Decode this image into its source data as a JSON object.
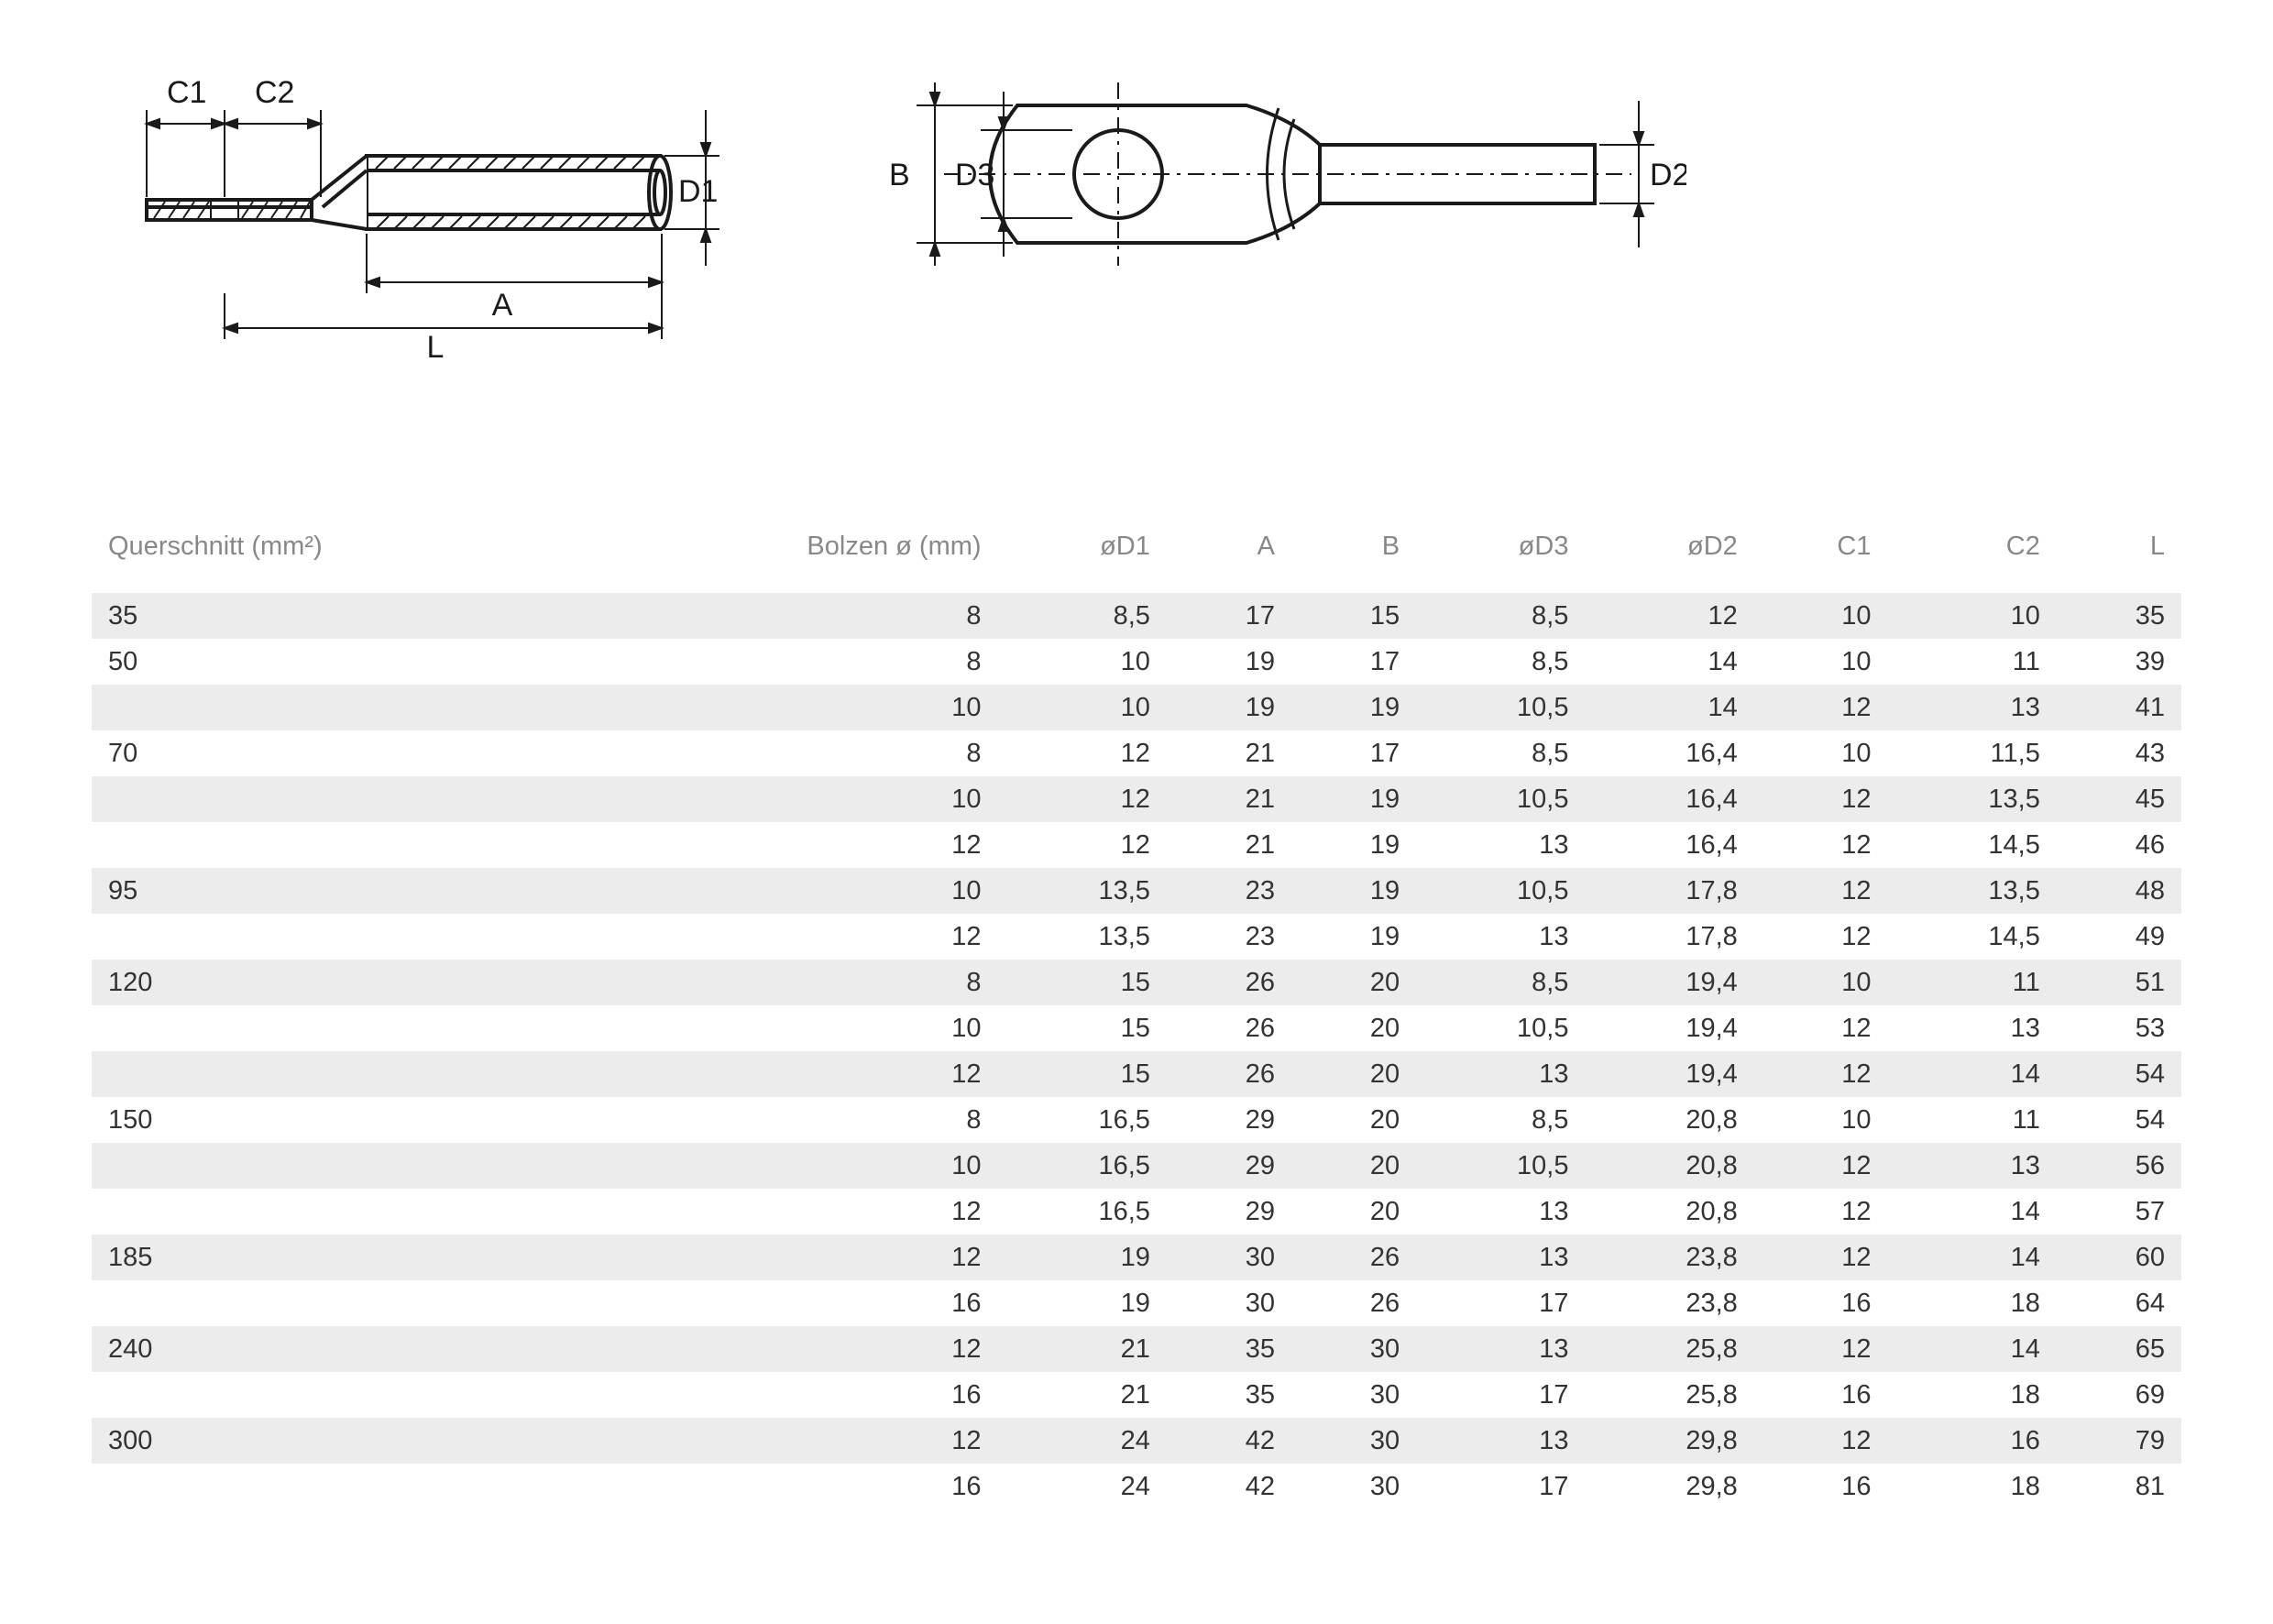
{
  "diagram": {
    "labels": {
      "C1": "C1",
      "C2": "C2",
      "D1": "D1",
      "A": "A",
      "L": "L",
      "B": "B",
      "D3": "D3",
      "D2": "D2"
    },
    "stroke": "#1a1a1a",
    "label_fontsize": 34,
    "label_color": "#1a1a1a"
  },
  "table": {
    "header_color": "#888888",
    "body_color": "#333333",
    "shade_color": "#ececec",
    "fontsize": 29,
    "columns": [
      "Querschnitt (mm²)",
      "Bolzen ø (mm)",
      "øD1",
      "A",
      "B",
      "øD3",
      "øD2",
      "C1",
      "C2",
      "L"
    ],
    "rows": [
      {
        "shade": true,
        "cells": [
          "35",
          "8",
          "8,5",
          "17",
          "15",
          "8,5",
          "12",
          "10",
          "10",
          "35"
        ]
      },
      {
        "shade": false,
        "cells": [
          "50",
          "8",
          "10",
          "19",
          "17",
          "8,5",
          "14",
          "10",
          "11",
          "39"
        ]
      },
      {
        "shade": true,
        "cells": [
          "",
          "10",
          "10",
          "19",
          "19",
          "10,5",
          "14",
          "12",
          "13",
          "41"
        ]
      },
      {
        "shade": false,
        "cells": [
          "70",
          "8",
          "12",
          "21",
          "17",
          "8,5",
          "16,4",
          "10",
          "11,5",
          "43"
        ]
      },
      {
        "shade": true,
        "cells": [
          "",
          "10",
          "12",
          "21",
          "19",
          "10,5",
          "16,4",
          "12",
          "13,5",
          "45"
        ]
      },
      {
        "shade": false,
        "cells": [
          "",
          "12",
          "12",
          "21",
          "19",
          "13",
          "16,4",
          "12",
          "14,5",
          "46"
        ]
      },
      {
        "shade": true,
        "cells": [
          "95",
          "10",
          "13,5",
          "23",
          "19",
          "10,5",
          "17,8",
          "12",
          "13,5",
          "48"
        ]
      },
      {
        "shade": false,
        "cells": [
          "",
          "12",
          "13,5",
          "23",
          "19",
          "13",
          "17,8",
          "12",
          "14,5",
          "49"
        ]
      },
      {
        "shade": true,
        "cells": [
          "120",
          "8",
          "15",
          "26",
          "20",
          "8,5",
          "19,4",
          "10",
          "11",
          "51"
        ]
      },
      {
        "shade": false,
        "cells": [
          "",
          "10",
          "15",
          "26",
          "20",
          "10,5",
          "19,4",
          "12",
          "13",
          "53"
        ]
      },
      {
        "shade": true,
        "cells": [
          "",
          "12",
          "15",
          "26",
          "20",
          "13",
          "19,4",
          "12",
          "14",
          "54"
        ]
      },
      {
        "shade": false,
        "cells": [
          "150",
          "8",
          "16,5",
          "29",
          "20",
          "8,5",
          "20,8",
          "10",
          "11",
          "54"
        ]
      },
      {
        "shade": true,
        "cells": [
          "",
          "10",
          "16,5",
          "29",
          "20",
          "10,5",
          "20,8",
          "12",
          "13",
          "56"
        ]
      },
      {
        "shade": false,
        "cells": [
          "",
          "12",
          "16,5",
          "29",
          "20",
          "13",
          "20,8",
          "12",
          "14",
          "57"
        ]
      },
      {
        "shade": true,
        "cells": [
          "185",
          "12",
          "19",
          "30",
          "26",
          "13",
          "23,8",
          "12",
          "14",
          "60"
        ]
      },
      {
        "shade": false,
        "cells": [
          "",
          "16",
          "19",
          "30",
          "26",
          "17",
          "23,8",
          "16",
          "18",
          "64"
        ]
      },
      {
        "shade": true,
        "cells": [
          "240",
          "12",
          "21",
          "35",
          "30",
          "13",
          "25,8",
          "12",
          "14",
          "65"
        ]
      },
      {
        "shade": false,
        "cells": [
          "",
          "16",
          "21",
          "35",
          "30",
          "17",
          "25,8",
          "16",
          "18",
          "69"
        ]
      },
      {
        "shade": true,
        "cells": [
          "300",
          "12",
          "24",
          "42",
          "30",
          "13",
          "29,8",
          "12",
          "16",
          "79"
        ]
      },
      {
        "shade": false,
        "cells": [
          "",
          "16",
          "24",
          "42",
          "30",
          "17",
          "29,8",
          "16",
          "18",
          "81"
        ]
      }
    ]
  }
}
